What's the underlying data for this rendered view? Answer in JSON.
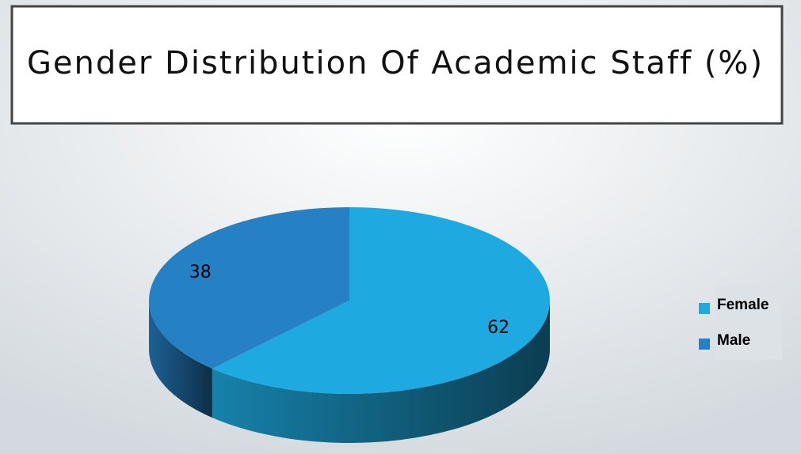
{
  "chart_data": {
    "type": "pie",
    "title": "Gender Distribution Of Academic Staff (%)",
    "categories": [
      "Female",
      "Male"
    ],
    "values": [
      62,
      38
    ],
    "colors": [
      "#1eaae0",
      "#2580c4"
    ],
    "legend": "right",
    "start": "top",
    "direction": "clockwise"
  }
}
